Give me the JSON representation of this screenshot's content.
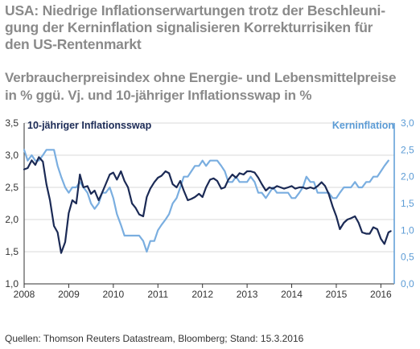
{
  "title": "USA: Niedrige Inflationserwartungen trotz der Beschleunigung der Kerninflation signalisieren Korrekturrisiken für den US-Rentenmarkt",
  "title_lines": [
    "USA: Niedrige Inflationserwartungen trotz der Beschleuni-",
    "gung der Kerninflation signalisieren Korrekturrisiken für",
    "den US-Rentenmarkt"
  ],
  "subtitle_lines": [
    "Verbraucherpreisindex ohne Energie- und Lebensmittelpreise",
    "in % ggü. Vj. und 10-jähriger Inflationsswap in %"
  ],
  "source": "Quellen: Thomson Reuters Datastream, Bloomberg; Stand: 15.3.2016",
  "colors": {
    "swap": "#1b2a55",
    "core": "#7aaee0",
    "right_axis": "#5b9bd5"
  },
  "chart_data": {
    "type": "line",
    "x_ticks": [
      "2008",
      "2009",
      "2010",
      "2011",
      "2012",
      "2013",
      "2014",
      "2015",
      "2016"
    ],
    "x_range": [
      2008.0,
      2016.3
    ],
    "y_left": {
      "ticks": [
        "1,0",
        "1,5",
        "2,0",
        "2,5",
        "3,0",
        "3,5"
      ],
      "range": [
        1.0,
        3.5
      ]
    },
    "y_right": {
      "ticks": [
        "0,0",
        "0,5",
        "1,0",
        "1,5",
        "2,0",
        "2,5",
        "3,0"
      ],
      "range": [
        0.0,
        3.0
      ]
    },
    "grid": "horizontal",
    "series": [
      {
        "name": "10-jähriger Inflationsswap",
        "axis": "left",
        "legend_position": "top-left",
        "x": [
          2008.0,
          2008.08,
          2008.17,
          2008.25,
          2008.33,
          2008.42,
          2008.5,
          2008.58,
          2008.67,
          2008.75,
          2008.83,
          2008.92,
          2009.0,
          2009.08,
          2009.17,
          2009.25,
          2009.33,
          2009.42,
          2009.5,
          2009.58,
          2009.67,
          2009.75,
          2009.83,
          2009.92,
          2010.0,
          2010.08,
          2010.17,
          2010.25,
          2010.33,
          2010.42,
          2010.5,
          2010.58,
          2010.67,
          2010.75,
          2010.83,
          2010.92,
          2011.0,
          2011.08,
          2011.17,
          2011.25,
          2011.33,
          2011.42,
          2011.5,
          2011.58,
          2011.67,
          2011.75,
          2011.83,
          2011.92,
          2012.0,
          2012.08,
          2012.17,
          2012.25,
          2012.33,
          2012.42,
          2012.5,
          2012.58,
          2012.67,
          2012.75,
          2012.83,
          2012.92,
          2013.0,
          2013.08,
          2013.17,
          2013.25,
          2013.33,
          2013.42,
          2013.5,
          2013.58,
          2013.67,
          2013.75,
          2013.83,
          2013.92,
          2014.0,
          2014.08,
          2014.17,
          2014.25,
          2014.33,
          2014.42,
          2014.5,
          2014.58,
          2014.67,
          2014.75,
          2014.83,
          2014.92,
          2015.0,
          2015.08,
          2015.17,
          2015.25,
          2015.33,
          2015.42,
          2015.5,
          2015.58,
          2015.67,
          2015.75,
          2015.83,
          2015.92,
          2016.0,
          2016.08,
          2016.17,
          2016.22
        ],
        "values": [
          2.78,
          2.8,
          2.92,
          2.85,
          2.97,
          2.9,
          2.55,
          2.3,
          1.9,
          1.8,
          1.48,
          1.65,
          2.1,
          2.3,
          2.25,
          2.7,
          2.5,
          2.52,
          2.4,
          2.45,
          2.3,
          2.42,
          2.55,
          2.7,
          2.73,
          2.62,
          2.75,
          2.6,
          2.5,
          2.25,
          2.18,
          2.08,
          2.05,
          2.35,
          2.48,
          2.58,
          2.65,
          2.68,
          2.75,
          2.72,
          2.55,
          2.5,
          2.6,
          2.45,
          2.3,
          2.32,
          2.35,
          2.4,
          2.35,
          2.5,
          2.62,
          2.64,
          2.6,
          2.48,
          2.5,
          2.62,
          2.7,
          2.65,
          2.72,
          2.7,
          2.75,
          2.75,
          2.73,
          2.65,
          2.55,
          2.45,
          2.5,
          2.48,
          2.52,
          2.5,
          2.48,
          2.5,
          2.52,
          2.48,
          2.5,
          2.5,
          2.48,
          2.5,
          2.48,
          2.52,
          2.58,
          2.52,
          2.4,
          2.2,
          2.05,
          1.85,
          1.95,
          2.0,
          2.02,
          2.05,
          1.95,
          1.8,
          1.78,
          1.78,
          1.88,
          1.85,
          1.7,
          1.62,
          1.8,
          1.82
        ]
      },
      {
        "name": "Kerninflation",
        "axis": "right",
        "legend_position": "top-right",
        "x": [
          2008.0,
          2008.08,
          2008.17,
          2008.25,
          2008.33,
          2008.42,
          2008.5,
          2008.58,
          2008.67,
          2008.75,
          2008.83,
          2008.92,
          2009.0,
          2009.08,
          2009.17,
          2009.25,
          2009.33,
          2009.42,
          2009.5,
          2009.58,
          2009.67,
          2009.75,
          2009.83,
          2009.92,
          2010.0,
          2010.08,
          2010.17,
          2010.25,
          2010.33,
          2010.42,
          2010.5,
          2010.58,
          2010.67,
          2010.75,
          2010.83,
          2010.92,
          2011.0,
          2011.08,
          2011.17,
          2011.25,
          2011.33,
          2011.42,
          2011.5,
          2011.58,
          2011.67,
          2011.75,
          2011.83,
          2011.92,
          2012.0,
          2012.08,
          2012.17,
          2012.25,
          2012.33,
          2012.42,
          2012.5,
          2012.58,
          2012.67,
          2012.75,
          2012.83,
          2012.92,
          2013.0,
          2013.08,
          2013.17,
          2013.25,
          2013.33,
          2013.42,
          2013.5,
          2013.58,
          2013.67,
          2013.75,
          2013.83,
          2013.92,
          2014.0,
          2014.08,
          2014.17,
          2014.25,
          2014.33,
          2014.42,
          2014.5,
          2014.58,
          2014.67,
          2014.75,
          2014.83,
          2014.92,
          2015.0,
          2015.08,
          2015.17,
          2015.25,
          2015.33,
          2015.42,
          2015.5,
          2015.58,
          2015.67,
          2015.75,
          2015.83,
          2015.92,
          2016.0,
          2016.08,
          2016.17
        ],
        "values": [
          2.5,
          2.3,
          2.4,
          2.3,
          2.3,
          2.4,
          2.5,
          2.5,
          2.5,
          2.2,
          2.0,
          1.8,
          1.7,
          1.8,
          1.8,
          1.9,
          1.8,
          1.7,
          1.5,
          1.4,
          1.5,
          1.7,
          1.7,
          1.8,
          1.6,
          1.3,
          1.1,
          0.9,
          0.9,
          0.9,
          0.9,
          0.9,
          0.8,
          0.6,
          0.8,
          0.8,
          1.0,
          1.1,
          1.2,
          1.3,
          1.5,
          1.6,
          1.8,
          2.0,
          2.0,
          2.1,
          2.2,
          2.2,
          2.3,
          2.2,
          2.3,
          2.3,
          2.3,
          2.2,
          2.1,
          1.9,
          1.9,
          2.0,
          1.9,
          1.9,
          1.9,
          2.0,
          1.9,
          1.7,
          1.7,
          1.6,
          1.7,
          1.8,
          1.7,
          1.7,
          1.7,
          1.7,
          1.6,
          1.6,
          1.7,
          1.8,
          2.0,
          1.9,
          1.9,
          1.7,
          1.7,
          1.7,
          1.7,
          1.6,
          1.6,
          1.7,
          1.8,
          1.8,
          1.8,
          1.9,
          1.8,
          1.8,
          1.9,
          1.9,
          2.0,
          2.0,
          2.1,
          2.2,
          2.3
        ]
      }
    ]
  }
}
